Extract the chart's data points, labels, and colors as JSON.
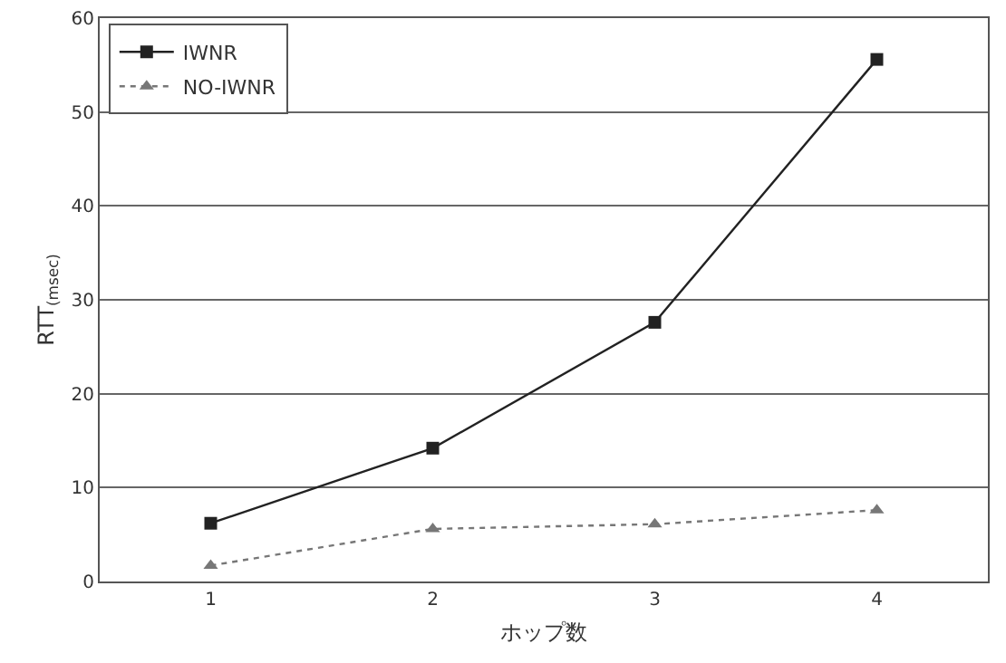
{
  "chart_data": {
    "type": "line",
    "xlabel": "ホップ数",
    "ylabel": "RTT$_{(msec)}$",
    "categories": [
      "1",
      "2",
      "3",
      "4"
    ],
    "series": [
      {
        "name": "IWNR",
        "color": "#222222",
        "values": [
          6.2,
          14.2,
          27.6,
          55.6
        ],
        "marker": "square",
        "line_style": "solid"
      },
      {
        "name": "NO-IWNR",
        "color": "#777777",
        "values": [
          1.7,
          5.6,
          6.1,
          7.6
        ],
        "marker": "triangle",
        "line_style": "dotted"
      }
    ],
    "ylim": [
      0,
      60
    ],
    "yticks": [
      0,
      10,
      20,
      30,
      40,
      50,
      60
    ],
    "grid": "y",
    "legend": "top left"
  }
}
